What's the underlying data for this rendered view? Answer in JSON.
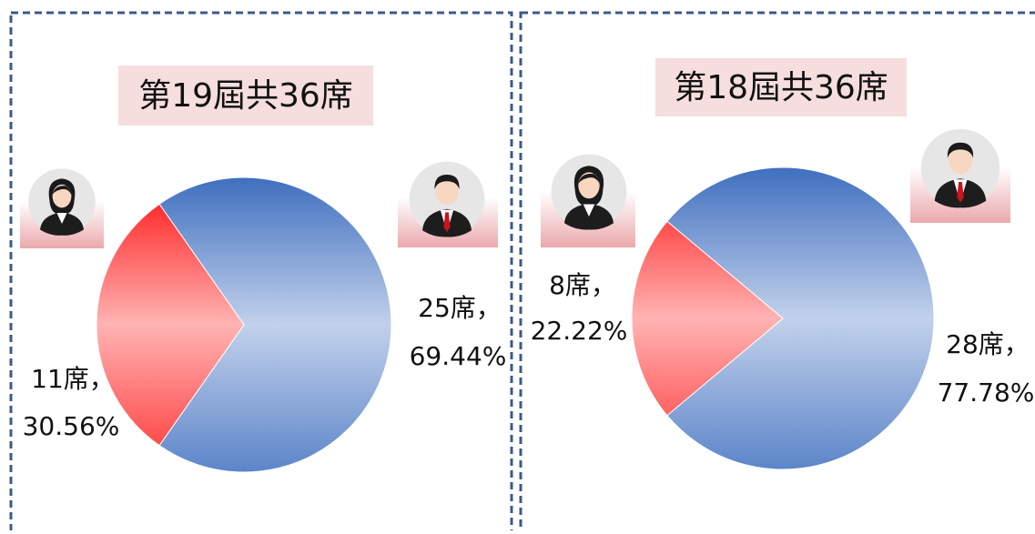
{
  "chart_data": [
    {
      "type": "pie",
      "title": "第19屆共36席",
      "values": [
        25,
        11
      ],
      "value_labels": [
        [
          "25席，",
          "69.44%"
        ],
        [
          "11席，",
          "30.56%"
        ]
      ],
      "colors": [
        "#3f6fbf",
        "#ff1010"
      ]
    },
    {
      "type": "pie",
      "title": "第18屆共36席",
      "values": [
        28,
        8
      ],
      "value_labels": [
        [
          "28席，",
          "77.78%"
        ],
        [
          "8席，",
          "22.22%"
        ]
      ],
      "colors": [
        "#3f6fbf",
        "#ff1010"
      ]
    }
  ]
}
